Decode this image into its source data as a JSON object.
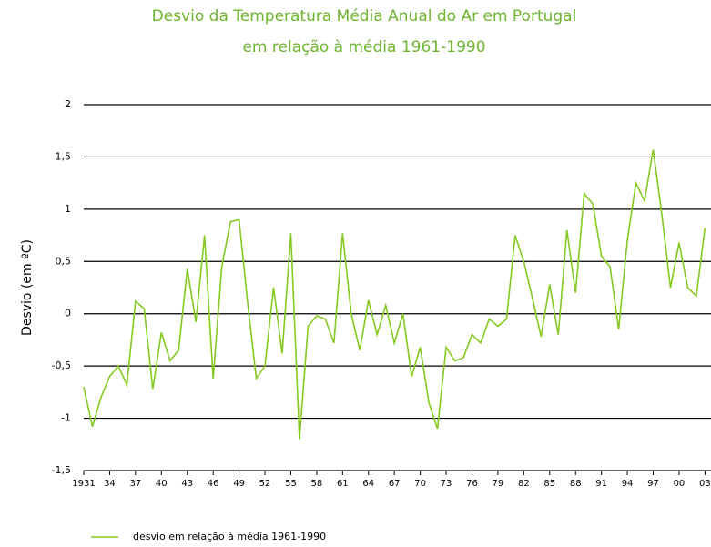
{
  "chart_data": {
    "type": "line",
    "title": "Desvio da Temperatura Média Anual do Ar em Portugal",
    "subtitle": "em relação à média 1961-1990",
    "y_label": "Desvio (em ºC)",
    "x": [
      1931,
      1932,
      1933,
      1934,
      1935,
      1936,
      1937,
      1938,
      1939,
      1940,
      1941,
      1942,
      1943,
      1944,
      1945,
      1946,
      1947,
      1948,
      1949,
      1950,
      1951,
      1952,
      1953,
      1954,
      1955,
      1956,
      1957,
      1958,
      1959,
      1960,
      1961,
      1962,
      1963,
      1964,
      1965,
      1966,
      1967,
      1968,
      1969,
      1970,
      1971,
      1972,
      1973,
      1974,
      1975,
      1976,
      1977,
      1978,
      1979,
      1980,
      1981,
      1982,
      1983,
      1984,
      1985,
      1986,
      1987,
      1988,
      1989,
      1990,
      1991,
      1992,
      1993,
      1994,
      1995,
      1996,
      1997,
      1998,
      1999,
      2000,
      2001,
      2002,
      2003
    ],
    "series": [
      {
        "name": "desvio em relação à média 1961-1990",
        "color": "#84c91f",
        "values": [
          -0.7,
          -1.08,
          -0.8,
          -0.6,
          -0.5,
          -0.68,
          0.12,
          0.05,
          -0.72,
          -0.18,
          -0.45,
          -0.35,
          0.43,
          -0.08,
          0.75,
          -0.62,
          0.45,
          0.88,
          0.9,
          0.1,
          -0.62,
          -0.5,
          0.25,
          -0.38,
          0.77,
          -1.2,
          -0.12,
          -0.02,
          -0.05,
          -0.28,
          0.77,
          0.0,
          -0.35,
          0.13,
          -0.2,
          0.08,
          -0.28,
          0.0,
          -0.6,
          -0.32,
          -0.85,
          -1.1,
          -0.32,
          -0.45,
          -0.42,
          -0.2,
          -0.28,
          -0.05,
          -0.12,
          -0.05,
          0.75,
          0.5,
          0.15,
          -0.22,
          0.28,
          -0.2,
          0.8,
          0.2,
          1.15,
          1.05,
          0.55,
          0.45,
          -0.15,
          0.7,
          1.25,
          1.08,
          1.57,
          0.95,
          0.25,
          0.68,
          0.25,
          0.17,
          0.82
        ]
      }
    ],
    "xlim": [
      1931,
      2003.7
    ],
    "xticks": [
      1931,
      {
        "value": 1934,
        "label": "34"
      },
      {
        "value": 1937,
        "label": "37"
      },
      {
        "value": 1940,
        "label": "40"
      },
      {
        "value": 1943,
        "label": "43"
      },
      {
        "value": 1946,
        "label": "46"
      },
      {
        "value": 1949,
        "label": "49"
      },
      {
        "value": 1952,
        "label": "52"
      },
      {
        "value": 1955,
        "label": "55"
      },
      {
        "value": 1958,
        "label": "58"
      },
      {
        "value": 1961,
        "label": "61"
      },
      {
        "value": 1964,
        "label": "64"
      },
      {
        "value": 1967,
        "label": "67"
      },
      {
        "value": 1970,
        "label": "70"
      },
      {
        "value": 1973,
        "label": "73"
      },
      {
        "value": 1976,
        "label": "76"
      },
      {
        "value": 1979,
        "label": "79"
      },
      {
        "value": 1982,
        "label": "82"
      },
      {
        "value": 1985,
        "label": "85"
      },
      {
        "value": 1988,
        "label": "88"
      },
      {
        "value": 1991,
        "label": "91"
      },
      {
        "value": 1994,
        "label": "94"
      },
      {
        "value": 1997,
        "label": "97"
      },
      {
        "value": 2000,
        "label": "00"
      },
      {
        "value": 2003,
        "label": "03"
      }
    ],
    "ylim": [
      -1.5,
      2
    ],
    "yticks": [
      {
        "value": -1.5,
        "label": "-1,5"
      },
      -1,
      {
        "value": -0.5,
        "label": "-0,5"
      },
      0,
      {
        "value": 0.5,
        "label": "0,5"
      },
      1,
      {
        "value": 1.5,
        "label": "1,5"
      },
      2
    ],
    "grid": true,
    "legend": "bottom-left"
  }
}
